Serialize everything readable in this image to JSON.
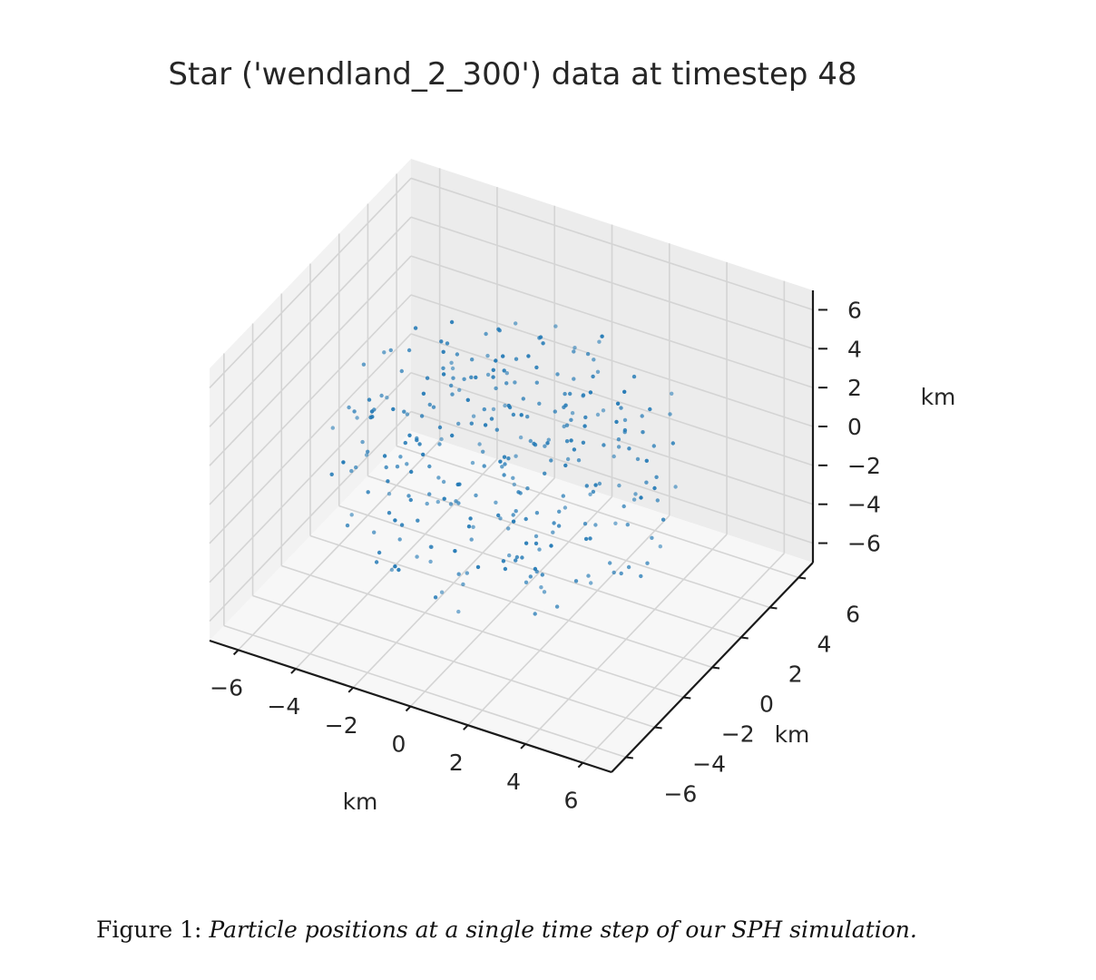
{
  "chart_data": {
    "type": "scatter",
    "projection": "3d",
    "title": "Star ('wendland_2_300') data at timestep 48",
    "xlabel": "km",
    "ylabel": "km",
    "zlabel": "km",
    "xlim": [
      -7,
      7
    ],
    "ylim": [
      -7,
      7
    ],
    "zlim": [
      -7,
      7
    ],
    "xticks": [
      -6,
      -4,
      -2,
      0,
      2,
      4,
      6
    ],
    "yticks": [
      -6,
      -4,
      -2,
      0,
      2,
      4,
      6
    ],
    "zticks": [
      -6,
      -4,
      -2,
      0,
      2,
      4,
      6
    ],
    "xtick_labels": [
      "−6",
      "−4",
      "−2",
      "0",
      "2",
      "4",
      "6"
    ],
    "ytick_labels": [
      "−6",
      "−4",
      "−2",
      "0",
      "2",
      "4",
      "6"
    ],
    "ztick_labels": [
      "−6",
      "−4",
      "−2",
      "0",
      "2",
      "4",
      "6"
    ],
    "grid": true,
    "marker_color": "#1f77b4",
    "n_points": 300,
    "point_distribution": "particles spread roughly uniformly within radius ~6 km of origin"
  },
  "caption": {
    "label": "Figure 1:",
    "text": "Particle positions at a single time step of our SPH simulation."
  }
}
